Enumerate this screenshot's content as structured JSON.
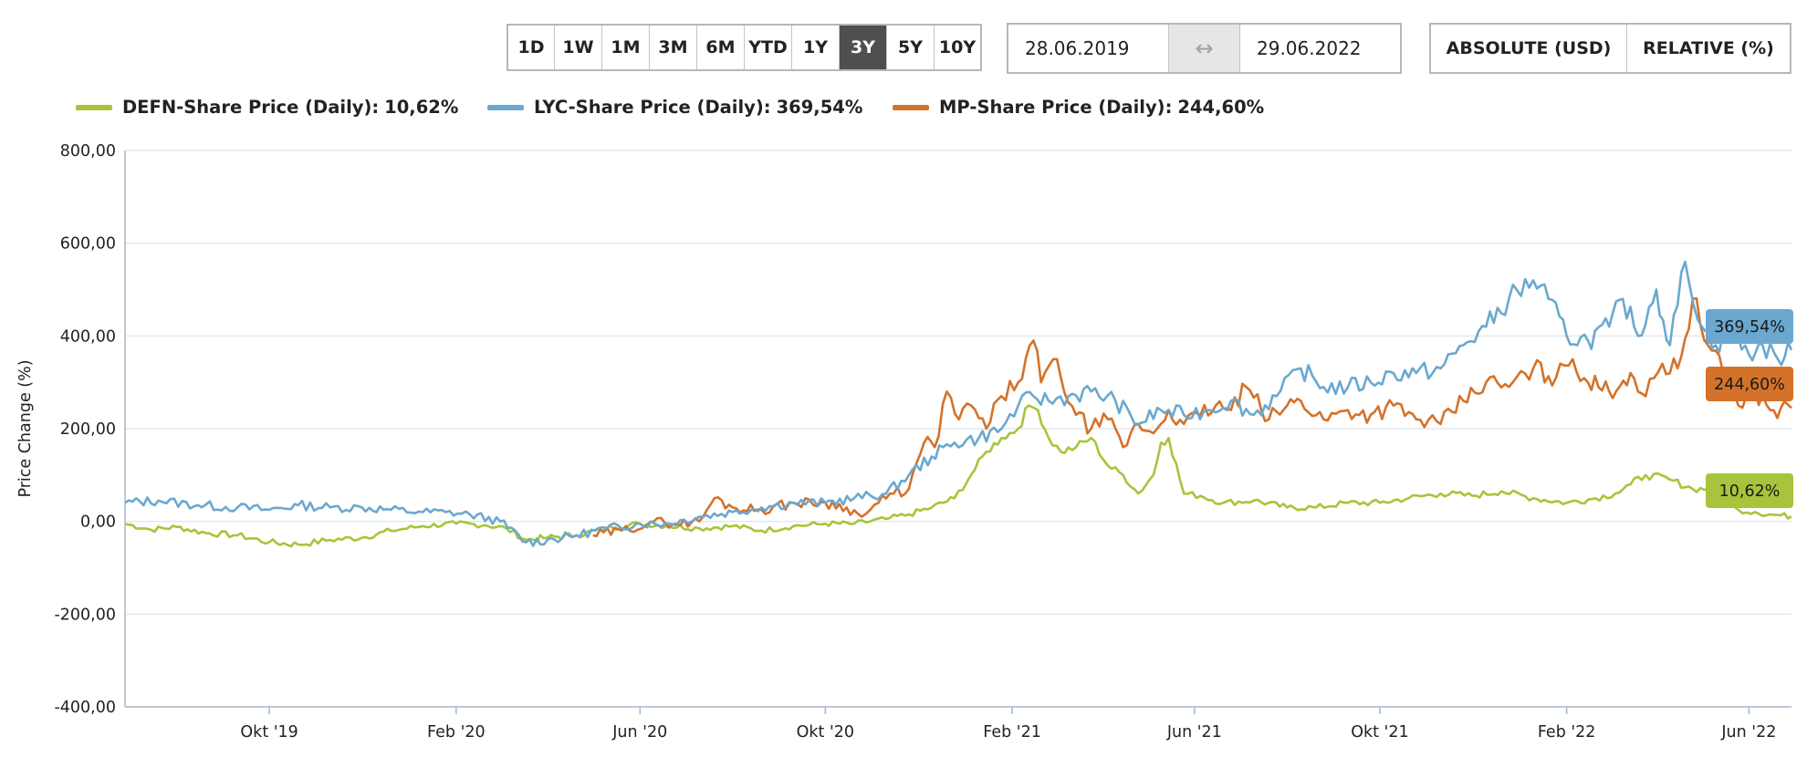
{
  "toolbar": {
    "ranges": [
      "1D",
      "1W",
      "1M",
      "3M",
      "6M",
      "YTD",
      "1Y",
      "3Y",
      "5Y",
      "10Y"
    ],
    "active_range": "3Y",
    "date_from": "28.06.2019",
    "date_separator_icon": "double-arrow-icon",
    "date_to": "29.06.2022",
    "absolute_label": "ABSOLUTE (USD)",
    "relative_label": "RELATIVE (%)",
    "active_mode": "relative"
  },
  "legend": [
    {
      "label": "DEFN-Share Price (Daily):",
      "value": "10,62%",
      "color": "#a8c43a"
    },
    {
      "label": "LYC-Share Price (Daily):",
      "value": "369,54%",
      "color": "#6ba8cf"
    },
    {
      "label": "MP-Share Price (Daily):",
      "value": "244,60%",
      "color": "#d4722a"
    }
  ],
  "chart_data": {
    "type": "line",
    "title": "",
    "xlabel": "",
    "ylabel": "Price Change (%)",
    "x_start": "2019-06-28",
    "x_end": "2022-06-29",
    "ylim": [
      -400,
      800
    ],
    "yticks": [
      -400,
      -200,
      0,
      200,
      400,
      600,
      800
    ],
    "ytick_labels": [
      "-400,00",
      "-200,00",
      "0,00",
      "200,00",
      "400,00",
      "600,00",
      "800,00"
    ],
    "xtick_dates": [
      "2019-10-01",
      "2020-02-01",
      "2020-06-01",
      "2020-10-01",
      "2021-02-01",
      "2021-06-01",
      "2021-10-01",
      "2022-02-01",
      "2022-06-01"
    ],
    "xtick_labels": [
      "Okt '19",
      "Feb '20",
      "Jun '20",
      "Okt '20",
      "Feb '21",
      "Jun '21",
      "Okt '21",
      "Feb '22",
      "Jun '22"
    ],
    "grid": "horizontal",
    "legend_position": "top-left",
    "series": [
      {
        "name": "DEFN-Share Price (Daily)",
        "color": "#a8c43a",
        "end_label": "10,62%",
        "x": [
          "2019-06-28",
          "2019-07-15",
          "2019-08-01",
          "2019-08-20",
          "2019-09-10",
          "2019-10-01",
          "2019-10-20",
          "2019-11-10",
          "2019-12-01",
          "2019-12-20",
          "2020-01-10",
          "2020-02-01",
          "2020-02-20",
          "2020-03-05",
          "2020-03-18",
          "2020-04-01",
          "2020-04-20",
          "2020-05-10",
          "2020-06-01",
          "2020-06-20",
          "2020-07-10",
          "2020-08-01",
          "2020-08-20",
          "2020-09-10",
          "2020-10-01",
          "2020-10-20",
          "2020-11-10",
          "2020-11-25",
          "2020-12-10",
          "2020-12-25",
          "2021-01-05",
          "2021-01-15",
          "2021-01-25",
          "2021-02-05",
          "2021-02-12",
          "2021-02-18",
          "2021-02-25",
          "2021-03-05",
          "2021-03-15",
          "2021-03-25",
          "2021-04-05",
          "2021-04-15",
          "2021-04-25",
          "2021-05-05",
          "2021-05-10",
          "2021-05-15",
          "2021-05-25",
          "2021-06-05",
          "2021-06-20",
          "2021-07-10",
          "2021-08-01",
          "2021-08-20",
          "2021-09-10",
          "2021-10-01",
          "2021-10-20",
          "2021-11-10",
          "2021-12-01",
          "2021-12-20",
          "2022-01-10",
          "2022-02-01",
          "2022-02-20",
          "2022-03-05",
          "2022-03-15",
          "2022-03-25",
          "2022-04-10",
          "2022-04-25",
          "2022-05-05",
          "2022-05-15",
          "2022-05-25",
          "2022-06-05",
          "2022-06-15",
          "2022-06-29"
        ],
        "y": [
          -5,
          -18,
          -12,
          -25,
          -30,
          -45,
          -50,
          -40,
          -35,
          -20,
          -10,
          -5,
          -8,
          -15,
          -40,
          -35,
          -30,
          -15,
          -5,
          -10,
          -15,
          -10,
          -20,
          -10,
          -5,
          -5,
          5,
          15,
          30,
          50,
          100,
          150,
          180,
          200,
          250,
          240,
          180,
          150,
          160,
          180,
          120,
          100,
          60,
          100,
          170,
          180,
          60,
          55,
          40,
          45,
          30,
          30,
          40,
          40,
          50,
          60,
          55,
          65,
          50,
          40,
          50,
          60,
          80,
          100,
          90,
          70,
          70,
          40,
          25,
          20,
          15,
          10.62
        ]
      },
      {
        "name": "LYC-Share Price (Daily)",
        "color": "#6ba8cf",
        "end_label": "369,54%",
        "x": [
          "2019-06-28",
          "2019-07-20",
          "2019-08-15",
          "2019-09-10",
          "2019-10-01",
          "2019-10-20",
          "2019-11-10",
          "2019-12-01",
          "2019-12-20",
          "2020-01-10",
          "2020-01-25",
          "2020-02-10",
          "2020-03-01",
          "2020-03-18",
          "2020-04-01",
          "2020-04-20",
          "2020-05-10",
          "2020-06-01",
          "2020-06-20",
          "2020-07-10",
          "2020-08-01",
          "2020-08-20",
          "2020-09-10",
          "2020-10-01",
          "2020-10-20",
          "2020-11-10",
          "2020-11-25",
          "2020-12-10",
          "2020-12-25",
          "2021-01-10",
          "2021-01-25",
          "2021-02-05",
          "2021-02-15",
          "2021-02-25",
          "2021-03-10",
          "2021-03-25",
          "2021-04-10",
          "2021-04-25",
          "2021-05-10",
          "2021-05-25",
          "2021-06-10",
          "2021-06-25",
          "2021-07-10",
          "2021-07-25",
          "2021-08-10",
          "2021-08-25",
          "2021-09-10",
          "2021-09-25",
          "2021-10-10",
          "2021-10-25",
          "2021-11-10",
          "2021-11-25",
          "2021-12-10",
          "2021-12-25",
          "2022-01-10",
          "2022-01-20",
          "2022-02-01",
          "2022-02-15",
          "2022-03-01",
          "2022-03-10",
          "2022-03-20",
          "2022-04-01",
          "2022-04-10",
          "2022-04-20",
          "2022-05-01",
          "2022-05-10",
          "2022-05-20",
          "2022-06-01",
          "2022-06-10",
          "2022-06-20",
          "2022-06-29"
        ],
        "y": [
          40,
          45,
          35,
          30,
          25,
          35,
          30,
          30,
          25,
          20,
          20,
          15,
          0,
          -45,
          -40,
          -30,
          -15,
          -5,
          -5,
          10,
          20,
          30,
          40,
          40,
          50,
          60,
          100,
          140,
          170,
          180,
          200,
          250,
          270,
          260,
          270,
          280,
          260,
          210,
          240,
          230,
          240,
          260,
          230,
          270,
          330,
          290,
          290,
          300,
          320,
          320,
          330,
          380,
          420,
          480,
          520,
          480,
          400,
          390,
          420,
          480,
          400,
          500,
          380,
          560,
          420,
          380,
          400,
          360,
          380,
          350,
          369.54
        ]
      },
      {
        "name": "MP-Share Price (Daily)",
        "color": "#d4722a",
        "end_label": "244,60%",
        "x": [
          "2020-05-01",
          "2020-05-20",
          "2020-06-10",
          "2020-06-25",
          "2020-07-10",
          "2020-07-20",
          "2020-08-01",
          "2020-08-20",
          "2020-09-10",
          "2020-10-01",
          "2020-10-15",
          "2020-10-25",
          "2020-11-05",
          "2020-11-15",
          "2020-11-25",
          "2020-12-05",
          "2020-12-12",
          "2020-12-20",
          "2020-12-28",
          "2021-01-05",
          "2021-01-15",
          "2021-01-25",
          "2021-02-05",
          "2021-02-15",
          "2021-02-20",
          "2021-02-28",
          "2021-03-05",
          "2021-03-15",
          "2021-03-25",
          "2021-04-05",
          "2021-04-15",
          "2021-04-25",
          "2021-05-05",
          "2021-05-15",
          "2021-05-25",
          "2021-06-05",
          "2021-06-15",
          "2021-06-25",
          "2021-07-05",
          "2021-07-20",
          "2021-08-01",
          "2021-08-10",
          "2021-08-25",
          "2021-09-10",
          "2021-09-25",
          "2021-10-10",
          "2021-10-25",
          "2021-11-10",
          "2021-11-25",
          "2021-12-10",
          "2021-12-25",
          "2022-01-10",
          "2022-01-25",
          "2022-02-05",
          "2022-02-15",
          "2022-03-01",
          "2022-03-15",
          "2022-03-25",
          "2022-04-05",
          "2022-04-15",
          "2022-04-25",
          "2022-05-05",
          "2022-05-15",
          "2022-05-25",
          "2022-06-05",
          "2022-06-15",
          "2022-06-29"
        ],
        "y": [
          -30,
          -20,
          0,
          -5,
          0,
          50,
          30,
          25,
          40,
          40,
          30,
          10,
          40,
          60,
          70,
          170,
          160,
          280,
          220,
          250,
          200,
          270,
          300,
          390,
          300,
          350,
          310,
          230,
          200,
          220,
          160,
          210,
          190,
          240,
          210,
          230,
          250,
          240,
          290,
          220,
          250,
          260,
          220,
          240,
          230,
          250,
          220,
          210,
          260,
          300,
          290,
          330,
          310,
          350,
          300,
          280,
          320,
          270,
          340,
          330,
          480,
          380,
          320,
          250,
          280,
          240,
          244.6
        ]
      }
    ]
  }
}
